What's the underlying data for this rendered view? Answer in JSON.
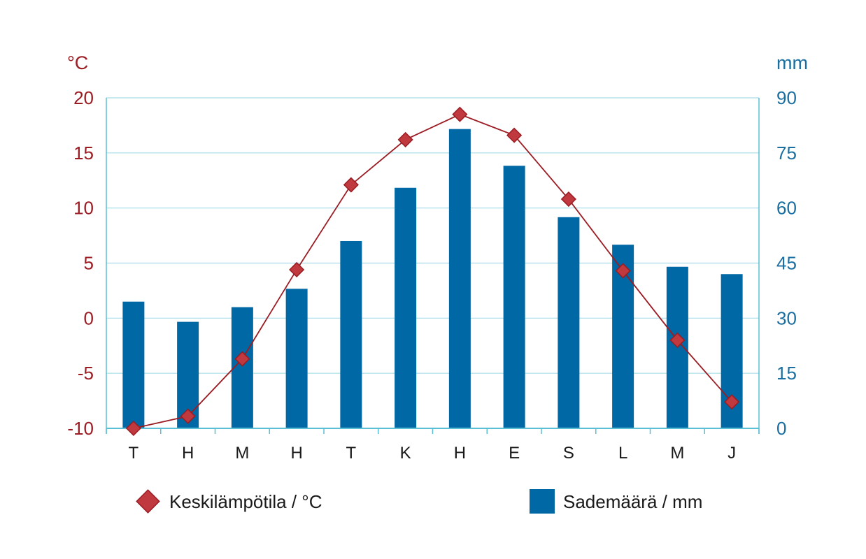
{
  "chart_data": {
    "type": "bar",
    "categories": [
      "T",
      "H",
      "M",
      "H",
      "T",
      "K",
      "H",
      "E",
      "S",
      "L",
      "M",
      "J"
    ],
    "series": [
      {
        "name": "Keskilämpötila / °C",
        "type": "line",
        "axis": "left",
        "values": [
          -10,
          -8.9,
          -3.7,
          4.4,
          12.1,
          16.2,
          18.5,
          16.6,
          10.8,
          4.3,
          -2.0,
          -7.6
        ]
      },
      {
        "name": "Sademäärä / mm",
        "type": "bar",
        "axis": "right",
        "values": [
          34.5,
          29,
          33,
          38,
          51,
          65.5,
          81.5,
          71.5,
          57.5,
          50,
          44,
          42
        ]
      }
    ],
    "y_left": {
      "unit": "°C",
      "ticks": [
        "20",
        "15",
        "10",
        "5",
        "0",
        "-5",
        "-10"
      ],
      "ylim": [
        -10,
        20
      ]
    },
    "y_right": {
      "unit": "mm",
      "ticks": [
        "90",
        "75",
        "60",
        "45",
        "30",
        "15",
        "0"
      ],
      "ylim": [
        0,
        90
      ]
    },
    "grid": true,
    "legend_position": "bottom"
  },
  "colors": {
    "temperature": "#9b1c23",
    "marker_fill": "#c0393e",
    "precipitation": "#0068a5",
    "right_axis_text": "#1a6fa0",
    "grid": "#a8dce8",
    "axis_line": "#5bbfd6"
  },
  "legend": {
    "temperature_label": "Keskilämpötila / °C",
    "precipitation_label": "Sademäärä / mm"
  }
}
